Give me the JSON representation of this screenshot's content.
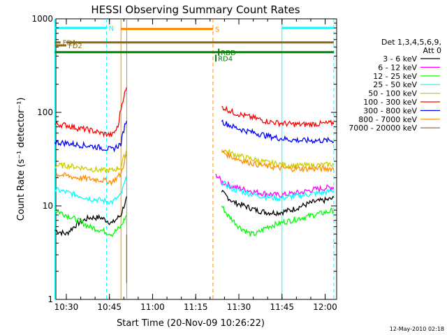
{
  "chart_data": {
    "type": "line",
    "title": "HESSI Observing Summary Count Rates",
    "xlabel": "Start Time (20-Nov-09 10:26:22)",
    "ylabel": "Count Rate (s⁻¹ detector⁻¹)",
    "yscale": "log",
    "ylim": [
      1,
      1000
    ],
    "xlim": [
      "10:26:22",
      "12:04:00"
    ],
    "x_ticks": [
      "10:30",
      "10:45",
      "11:00",
      "11:15",
      "11:30",
      "11:45",
      "12:00"
    ],
    "y_ticks": [
      "1",
      "10",
      "100",
      "1000"
    ],
    "legend_header": [
      "Det 1,3,4,5,6,9,",
      "Att 0"
    ],
    "legend_position": "right",
    "series": [
      {
        "name": "3 - 6 keV",
        "color": "#000000",
        "x": [
          "10:26",
          "10:30",
          "10:34",
          "10:38",
          "10:42",
          "10:46",
          "10:49",
          "10:51",
          "11:22",
          "11:24",
          "11:28",
          "11:32",
          "11:36",
          "11:40",
          "11:44",
          "11:48",
          "11:52",
          "11:56",
          "12:00",
          "12:03"
        ],
        "values": [
          5.5,
          5,
          6.5,
          7.5,
          7.5,
          6.5,
          8,
          12,
          null,
          14,
          11,
          10,
          9,
          8.5,
          8.5,
          9,
          10,
          11,
          11.5,
          12
        ]
      },
      {
        "name": "6 - 12 keV",
        "color": "#ff00ff",
        "x": [
          "11:22",
          "11:24",
          "11:28",
          "11:32",
          "11:36",
          "11:40",
          "11:44",
          "11:48",
          "11:52",
          "11:56",
          "12:00",
          "12:03"
        ],
        "values": [
          22,
          18,
          16,
          15,
          14,
          13.5,
          13,
          13.5,
          14,
          15,
          15.5,
          16
        ]
      },
      {
        "name": "12 - 25 keV",
        "color": "#00ff00",
        "x": [
          "10:26",
          "10:30",
          "10:34",
          "10:38",
          "10:42",
          "10:46",
          "10:49",
          "10:51",
          "11:22",
          "11:24",
          "11:26",
          "11:28",
          "11:30",
          "11:32",
          "11:34",
          "11:36",
          "11:38",
          "11:40",
          "11:44",
          "11:48",
          "11:52",
          "11:56",
          "12:00",
          "12:03"
        ],
        "values": [
          9,
          8,
          7,
          6,
          5.5,
          5,
          6,
          8,
          null,
          10,
          8,
          7,
          6,
          5.5,
          5,
          5,
          5.5,
          6,
          6.5,
          7,
          7.5,
          8,
          8.5,
          9
        ]
      },
      {
        "name": "25 - 50 keV",
        "color": "#00ffff",
        "x": [
          "10:26",
          "10:30",
          "10:34",
          "10:38",
          "10:42",
          "10:46",
          "10:49",
          "10:51",
          "11:22",
          "11:24",
          "11:28",
          "11:32",
          "11:36",
          "11:40",
          "11:44",
          "11:48",
          "11:52",
          "11:56",
          "12:00",
          "12:03"
        ],
        "values": [
          15,
          14,
          13,
          12,
          11.5,
          11,
          13,
          20,
          null,
          18,
          15,
          14,
          13,
          12.5,
          12,
          12.5,
          13,
          13.5,
          14,
          14.5
        ]
      },
      {
        "name": "50 - 100 keV",
        "color": "#cccc00",
        "x": [
          "10:26",
          "10:30",
          "10:34",
          "10:38",
          "10:42",
          "10:46",
          "10:49",
          "10:51",
          "11:22",
          "11:24",
          "11:28",
          "11:32",
          "11:36",
          "11:40",
          "11:44",
          "11:48",
          "11:52",
          "11:56",
          "12:00",
          "12:03"
        ],
        "values": [
          27,
          27,
          26,
          25,
          24,
          24,
          26,
          40,
          null,
          40,
          36,
          33,
          31,
          29,
          28,
          27,
          27,
          27,
          27.5,
          28
        ]
      },
      {
        "name": "100 - 300 keV",
        "color": "#ff0000",
        "x": [
          "10:26",
          "10:30",
          "10:34",
          "10:38",
          "10:42",
          "10:46",
          "10:48",
          "10:50",
          "10:51",
          "11:22",
          "11:24",
          "11:28",
          "11:32",
          "11:36",
          "11:40",
          "11:44",
          "11:48",
          "11:52",
          "11:56",
          "12:00",
          "12:03"
        ],
        "values": [
          75,
          73,
          68,
          65,
          60,
          57,
          70,
          150,
          180,
          null,
          115,
          100,
          92,
          86,
          80,
          77,
          75,
          74,
          75,
          76,
          77
        ]
      },
      {
        "name": "300 - 800 keV",
        "color": "#0000ff",
        "x": [
          "10:26",
          "10:30",
          "10:34",
          "10:38",
          "10:42",
          "10:46",
          "10:49",
          "10:51",
          "11:22",
          "11:24",
          "11:28",
          "11:32",
          "11:36",
          "11:40",
          "11:44",
          "11:48",
          "11:52",
          "11:56",
          "12:00",
          "12:03"
        ],
        "values": [
          48,
          47,
          45,
          44,
          42,
          40,
          46,
          85,
          null,
          80,
          70,
          64,
          60,
          56,
          53,
          51,
          50,
          50,
          50,
          50
        ]
      },
      {
        "name": "800 - 7000 keV",
        "color": "#ff8c00",
        "x": [
          "10:26",
          "10:30",
          "10:34",
          "10:38",
          "10:42",
          "10:46",
          "10:49",
          "10:51",
          "11:22",
          "11:24",
          "11:28",
          "11:32",
          "11:36",
          "11:40",
          "11:44",
          "11:48",
          "11:52",
          "11:56",
          "12:00",
          "12:03"
        ],
        "values": [
          22,
          21,
          20,
          19.5,
          19,
          18,
          22,
          35,
          null,
          38,
          33,
          30,
          28,
          26.5,
          25.5,
          25,
          25,
          25,
          25,
          25
        ]
      },
      {
        "name": "7000 - 20000 keV",
        "color": "#8b6914",
        "x": [
          "10:51",
          "10:51"
        ],
        "values": [
          1.5,
          5
        ]
      }
    ],
    "flag_bars": [
      {
        "label": "N",
        "color": "#00ffff",
        "segments": [
          [
            "10:26",
            "10:44"
          ],
          [
            "11:45",
            "12:03"
          ]
        ],
        "level": 800
      },
      {
        "label": "S",
        "color": "#ff8c00",
        "segments": [
          [
            "10:49",
            "11:21"
          ]
        ],
        "level": 780
      },
      {
        "label": "FD1",
        "color": "#8b6914",
        "segments": [
          [
            "10:26",
            "10:28"
          ]
        ],
        "level": 560
      },
      {
        "label": "FD2",
        "color": "#8b6914",
        "segments": [
          [
            "10:26",
            "10:30"
          ]
        ],
        "level": 520
      },
      {
        "label": "",
        "color": "#8b6914",
        "segments": [
          [
            "10:30",
            "12:03"
          ]
        ],
        "level": 560
      },
      {
        "label": "",
        "color": "#008000",
        "segments": [
          [
            "10:26",
            "12:03"
          ]
        ],
        "level": 440
      },
      {
        "label": "RD4",
        "color": "#008000",
        "segments": [
          [
            "11:22",
            "11:22"
          ]
        ],
        "level": 380
      },
      {
        "label": "RBD",
        "color": "#008000",
        "segments": [
          [
            "11:23",
            "11:23"
          ]
        ],
        "level": 440
      }
    ],
    "vertical_markers": [
      {
        "time": "10:26",
        "color": "#00ffff",
        "style": "solid"
      },
      {
        "time": "10:44",
        "color": "#00ffff",
        "style": "dashed"
      },
      {
        "time": "10:49",
        "color": "#ff8c00",
        "style": "solid"
      },
      {
        "time": "10:51",
        "color": "#cc9900",
        "style": "solid"
      },
      {
        "time": "11:21",
        "color": "#ff8c00",
        "style": "dashed"
      },
      {
        "time": "11:45",
        "color": "#00ffff",
        "style": "solid"
      },
      {
        "time": "12:03",
        "color": "#00ffff",
        "style": "dashed"
      }
    ]
  },
  "footer": {
    "timestamp": "12-May-2010 02:18"
  }
}
